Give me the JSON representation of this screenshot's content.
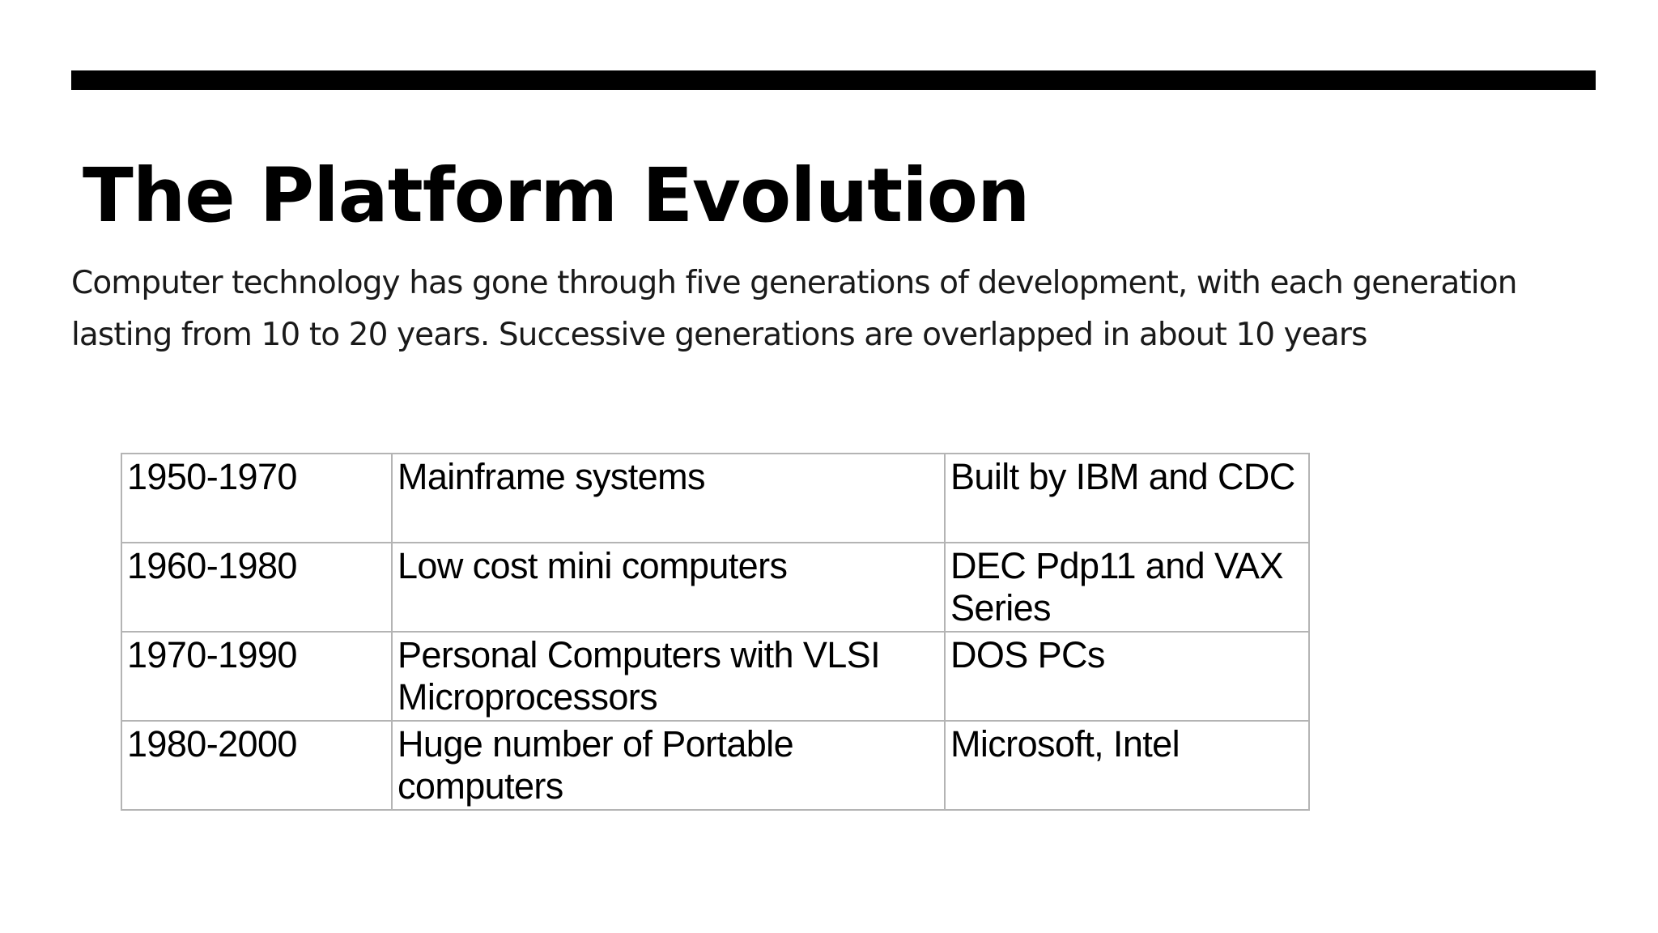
{
  "slide": {
    "title": "The Platform Evolution",
    "intro": "Computer technology has gone through five generations of development, with each generation lasting from 10 to 20 years. Successive generations are overlapped in about 10 years"
  },
  "table": {
    "rows": [
      {
        "period": "1950-1970",
        "platform": "Mainframe systems",
        "examples": "Built by IBM and CDC"
      },
      {
        "period": "1960-1980",
        "platform": "Low cost mini computers",
        "examples": "DEC Pdp11 and VAX Series"
      },
      {
        "period": "1970-1990",
        "platform": "Personal Computers with VLSI Microprocessors",
        "examples": "DOS PCs"
      },
      {
        "period": "1980-2000",
        "platform": "Huge number of Portable computers",
        "examples": "Microsoft, Intel"
      }
    ]
  }
}
